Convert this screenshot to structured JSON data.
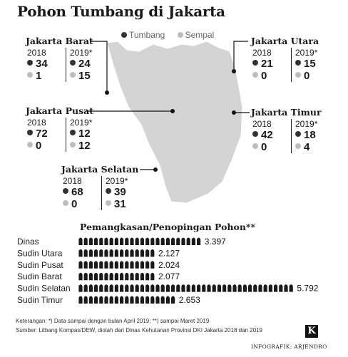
{
  "title": "Pohon Tumbang di Jakarta",
  "legend": {
    "tumbang": "Tumbang",
    "sempal": "Sempal"
  },
  "colors": {
    "tumbang": "#333333",
    "sempal": "#bdbdbd",
    "map": "#d4d4d4",
    "bar": "#1a1a1a"
  },
  "year_labels": {
    "y2018": "2018",
    "y2019": "2019*"
  },
  "regions": [
    {
      "name": "Jakarta Barat",
      "y2018": {
        "tumbang": 34,
        "sempal": 1
      },
      "y2019": {
        "tumbang": 24,
        "sempal": 15
      }
    },
    {
      "name": "Jakarta Utara",
      "y2018": {
        "tumbang": 21,
        "sempal": 0
      },
      "y2019": {
        "tumbang": 15,
        "sempal": 0
      }
    },
    {
      "name": "Jakarta Pusat",
      "y2018": {
        "tumbang": 72,
        "sempal": 0
      },
      "y2019": {
        "tumbang": 12,
        "sempal": 12
      }
    },
    {
      "name": "Jakarta Timur",
      "y2018": {
        "tumbang": 42,
        "sempal": 0
      },
      "y2019": {
        "tumbang": 18,
        "sempal": 4
      }
    },
    {
      "name": "Jakarta Selatan",
      "y2018": {
        "tumbang": 68,
        "sempal": 0
      },
      "y2019": {
        "tumbang": 39,
        "sempal": 31
      }
    }
  ],
  "chart_data": {
    "type": "bar",
    "title": "Pemangkasan/Penopingan Pohon**",
    "categories": [
      "Dinas",
      "Sudin Utara",
      "Sudin Pusat",
      "Sudin Barat",
      "Sudin Selatan",
      "Sudin Timur"
    ],
    "values": [
      3397,
      2127,
      2024,
      2077,
      5792,
      2653
    ],
    "value_labels": [
      "3.397",
      "2.127",
      "2.024",
      "2.077",
      "5.792",
      "2.653"
    ],
    "orientation": "horizontal",
    "xlim": [
      0,
      5792
    ]
  },
  "notes": {
    "keterangan": "Keterangan: *) Data sampai dengan bulan April 2019; **) sampai Maret 2019",
    "sumber": "Sumber: Litbang Kompas/DEW, diolah dari Dinas Kehutanan Provinsi DKI Jakarta 2018 dan 2019",
    "credit": "INFOGRAFIK: ARJENDRO",
    "logo": "K"
  }
}
